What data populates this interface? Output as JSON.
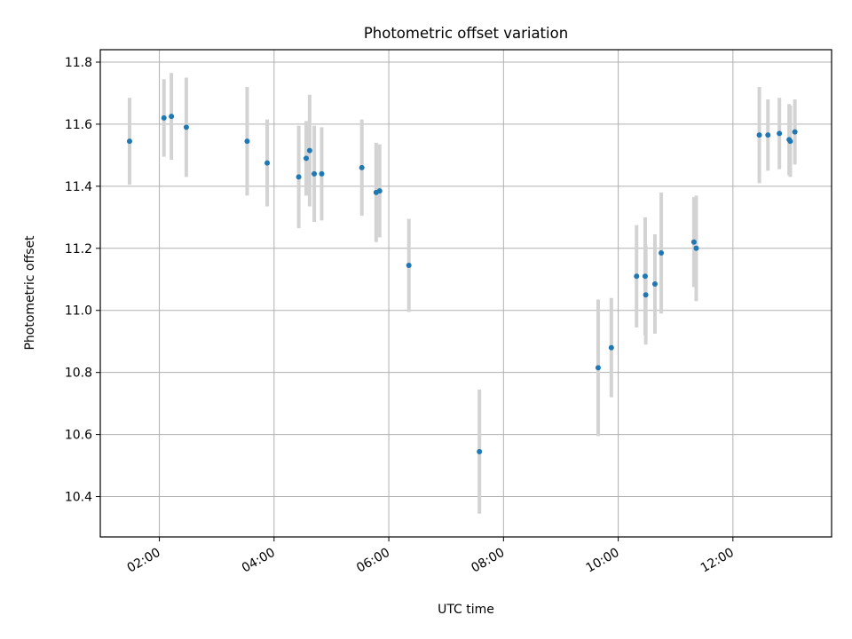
{
  "chart_data": {
    "type": "scatter",
    "title": "Photometric offset variation",
    "xlabel": "UTC time",
    "ylabel": "Photometric offset",
    "xlim_hours": [
      0.97,
      13.72
    ],
    "ylim": [
      10.27,
      11.84
    ],
    "grid": true,
    "x_ticks": [
      {
        "value": 2,
        "label": "02:00"
      },
      {
        "value": 4,
        "label": "04:00"
      },
      {
        "value": 6,
        "label": "06:00"
      },
      {
        "value": 8,
        "label": "08:00"
      },
      {
        "value": 10,
        "label": "10:00"
      },
      {
        "value": 12,
        "label": "12:00"
      }
    ],
    "y_ticks": [
      {
        "value": 10.4,
        "label": "10.4"
      },
      {
        "value": 10.6,
        "label": "10.6"
      },
      {
        "value": 10.8,
        "label": "10.8"
      },
      {
        "value": 11.0,
        "label": "11.0"
      },
      {
        "value": 11.2,
        "label": "11.2"
      },
      {
        "value": 11.4,
        "label": "11.4"
      },
      {
        "value": 11.6,
        "label": "11.6"
      },
      {
        "value": 11.8,
        "label": "11.8"
      }
    ],
    "series": [
      {
        "name": "offset",
        "point_color": "#1f77b4",
        "errorbar_color": "#d3d3d3",
        "points": [
          {
            "t": 1.48,
            "y": 11.545,
            "err": 0.14
          },
          {
            "t": 2.08,
            "y": 11.62,
            "err": 0.125
          },
          {
            "t": 2.21,
            "y": 11.625,
            "err": 0.14
          },
          {
            "t": 2.47,
            "y": 11.59,
            "err": 0.16
          },
          {
            "t": 3.53,
            "y": 11.545,
            "err": 0.175
          },
          {
            "t": 3.88,
            "y": 11.475,
            "err": 0.14
          },
          {
            "t": 4.43,
            "y": 11.43,
            "err": 0.165
          },
          {
            "t": 4.56,
            "y": 11.49,
            "err": 0.12
          },
          {
            "t": 4.62,
            "y": 11.515,
            "err": 0.18
          },
          {
            "t": 4.7,
            "y": 11.44,
            "err": 0.155
          },
          {
            "t": 4.83,
            "y": 11.44,
            "err": 0.15
          },
          {
            "t": 5.53,
            "y": 11.46,
            "err": 0.155
          },
          {
            "t": 5.78,
            "y": 11.38,
            "err": 0.16
          },
          {
            "t": 5.84,
            "y": 11.385,
            "err": 0.15
          },
          {
            "t": 6.35,
            "y": 11.145,
            "err": 0.15
          },
          {
            "t": 7.58,
            "y": 10.545,
            "err": 0.2
          },
          {
            "t": 9.65,
            "y": 10.815,
            "err": 0.22
          },
          {
            "t": 9.88,
            "y": 10.88,
            "err": 0.16
          },
          {
            "t": 10.32,
            "y": 11.11,
            "err": 0.165
          },
          {
            "t": 10.47,
            "y": 11.11,
            "err": 0.19
          },
          {
            "t": 10.48,
            "y": 11.05,
            "err": 0.16
          },
          {
            "t": 10.64,
            "y": 11.085,
            "err": 0.16
          },
          {
            "t": 10.75,
            "y": 11.185,
            "err": 0.195
          },
          {
            "t": 11.32,
            "y": 11.22,
            "err": 0.145
          },
          {
            "t": 11.36,
            "y": 11.2,
            "err": 0.17
          },
          {
            "t": 12.46,
            "y": 11.565,
            "err": 0.155
          },
          {
            "t": 12.61,
            "y": 11.565,
            "err": 0.115
          },
          {
            "t": 12.81,
            "y": 11.57,
            "err": 0.115
          },
          {
            "t": 12.98,
            "y": 11.55,
            "err": 0.115
          },
          {
            "t": 13.0,
            "y": 11.545,
            "err": 0.115
          },
          {
            "t": 13.08,
            "y": 11.575,
            "err": 0.105
          }
        ]
      }
    ]
  }
}
